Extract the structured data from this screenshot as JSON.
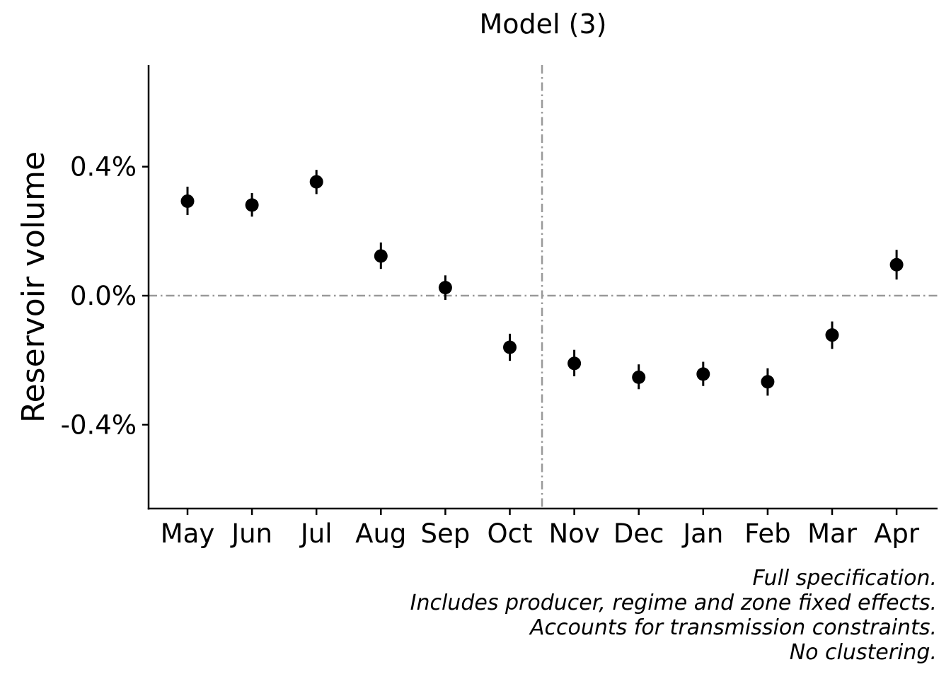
{
  "chart_data": {
    "type": "scatter",
    "title": "Model (3)",
    "xlabel": "",
    "ylabel": "Reservoir volume",
    "categories": [
      "May",
      "Jun",
      "Jul",
      "Aug",
      "Sep",
      "Oct",
      "Nov",
      "Dec",
      "Jan",
      "Feb",
      "Mar",
      "Apr"
    ],
    "series": [
      {
        "values": [
          0.293,
          0.281,
          0.353,
          0.123,
          0.025,
          -0.16,
          -0.21,
          -0.253,
          -0.243,
          -0.267,
          -0.122,
          0.096
        ],
        "lower": [
          0.25,
          0.245,
          0.315,
          0.083,
          -0.013,
          -0.202,
          -0.25,
          -0.29,
          -0.28,
          -0.31,
          -0.165,
          0.05
        ],
        "upper": [
          0.338,
          0.318,
          0.39,
          0.165,
          0.063,
          -0.118,
          -0.168,
          -0.213,
          -0.205,
          -0.225,
          -0.08,
          0.142
        ]
      }
    ],
    "yticks": [
      0.4,
      0.0,
      -0.4
    ],
    "ytick_labels": [
      "0.4%",
      "0.0%",
      "-0.4%"
    ],
    "ylim": [
      -0.66,
      0.715
    ],
    "reference_lines": {
      "horizontal_at": 0.0,
      "vertical_between": [
        "Oct",
        "Nov"
      ],
      "style": "dash-dot",
      "color": "#999999"
    },
    "grid": false,
    "caption": [
      "Full specification.",
      "Includes producer, regime and zone fixed effects.",
      "Accounts for transmission constraints.",
      "No clustering."
    ]
  }
}
